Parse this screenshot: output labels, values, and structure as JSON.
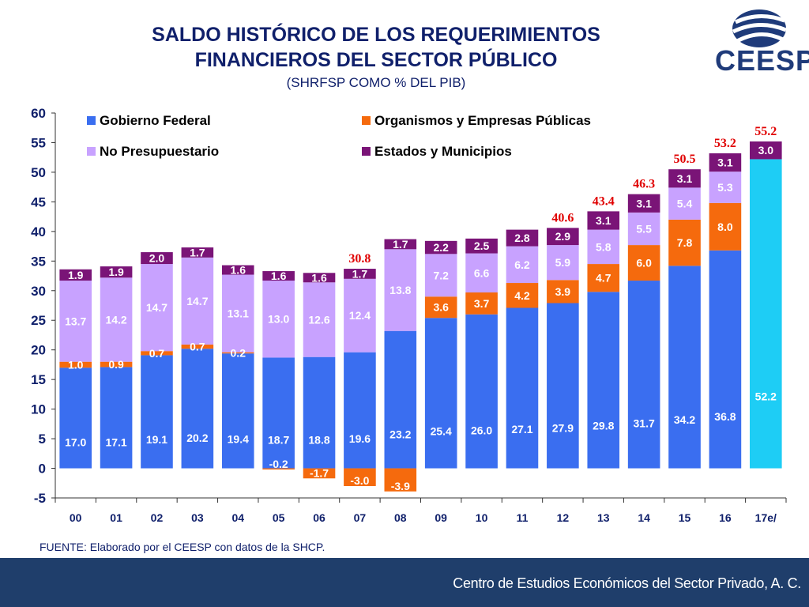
{
  "header": {
    "title_line1": "SALDO HISTÓRICO DE LOS REQUERIMIENTOS",
    "title_line2": "FINANCIEROS DEL SECTOR PÚBLICO",
    "subtitle": "(SHRFSP COMO % DEL PIB)",
    "logo_text": "CEESP"
  },
  "source": "FUENTE: Elaborado por el CEESP con datos de la SHCP.",
  "footer": "Centro de Estudios Económicos del Sector Privado, A. C.",
  "colors": {
    "gobierno": "#3a6ef0",
    "organismos": "#f56a0d",
    "no_presupuestario": "#c8a2ff",
    "estados": "#7a1477",
    "highlight_2017": "#1ecdf5",
    "total_labels": "#e00000",
    "axis_text": "#10206b"
  },
  "chart_data": {
    "type": "bar",
    "stacked": true,
    "categories": [
      "00",
      "01",
      "02",
      "03",
      "04",
      "05",
      "06",
      "07",
      "08",
      "09",
      "10",
      "11",
      "12",
      "13",
      "14",
      "15",
      "16",
      "17e/"
    ],
    "ylim": [
      -5,
      60
    ],
    "yticks": [
      -5,
      0,
      5,
      10,
      15,
      20,
      25,
      30,
      35,
      40,
      45,
      50,
      55,
      60
    ],
    "legend_position": "top",
    "grid": false,
    "series": [
      {
        "name": "Gobierno Federal",
        "values": [
          17.0,
          17.1,
          19.1,
          20.2,
          19.4,
          18.7,
          18.8,
          19.6,
          23.2,
          25.4,
          26.0,
          27.1,
          27.9,
          29.8,
          31.7,
          34.2,
          36.8,
          52.2
        ]
      },
      {
        "name": "Organismos y Empresas Públicas",
        "values": [
          1.0,
          0.9,
          0.7,
          0.7,
          0.2,
          -0.2,
          -1.7,
          -3.0,
          -3.9,
          3.6,
          3.7,
          4.2,
          3.9,
          4.7,
          6.0,
          7.8,
          8.0,
          null
        ]
      },
      {
        "name": "No Presupuestario",
        "values": [
          13.7,
          14.2,
          14.7,
          14.7,
          13.1,
          13.0,
          12.6,
          12.4,
          13.8,
          7.2,
          6.6,
          6.2,
          5.9,
          5.8,
          5.5,
          5.4,
          5.3,
          null
        ]
      },
      {
        "name": "Estados y Municipios",
        "values": [
          1.9,
          1.9,
          2.0,
          1.7,
          1.6,
          1.6,
          1.6,
          1.7,
          1.7,
          2.2,
          2.5,
          2.8,
          2.9,
          3.1,
          3.1,
          3.1,
          3.1,
          3.0
        ]
      }
    ],
    "value_labels": {
      "Gobierno Federal": [
        "17.0",
        "17.1",
        "19.1",
        "20.2",
        "19.4",
        "18.7",
        "18.8",
        "19.6",
        "23.2",
        "25.4",
        "26.0",
        "27.1",
        "27.9",
        "29.8",
        "31.7",
        "34.2",
        "36.8",
        "52.2"
      ],
      "Organismos y Empresas Públicas": [
        "1.0",
        "0.9",
        "0.7",
        "0.7",
        "0.2",
        "-0.2",
        "-1.7",
        "-3.0",
        "-3.9",
        "3.6",
        "3.7",
        "4.2",
        "3.9",
        "4.7",
        "6.0",
        "7.8",
        "8.0",
        ""
      ],
      "No Presupuestario": [
        "13.7",
        "14.2",
        "14.7",
        "14.7",
        "13.1",
        "13.0",
        "12.6",
        "12.4",
        "13.8",
        "7.2",
        "6.6",
        "6.2",
        "5.9",
        "5.8",
        "5.5",
        "5.4",
        "5.3",
        ""
      ],
      "Estados y Municipios": [
        "1.9",
        "1.9",
        "2.0",
        "1.7",
        "1.6",
        "1.6",
        "1.6",
        "1.7",
        "1.7",
        "2.2",
        "2.5",
        "2.8",
        "2.9",
        "3.1",
        "3.1",
        "3.1",
        "3.1",
        "3.0"
      ]
    },
    "totals": [
      {
        "category": "07",
        "value": 30.8,
        "label": "30.8"
      },
      {
        "category": "12",
        "value": 40.6,
        "label": "40.6"
      },
      {
        "category": "13",
        "value": 43.4,
        "label": "43.4"
      },
      {
        "category": "14",
        "value": 46.3,
        "label": "46.3"
      },
      {
        "category": "15",
        "value": 50.5,
        "label": "50.5"
      },
      {
        "category": "16",
        "value": 53.2,
        "label": "53.2"
      },
      {
        "category": "17e/",
        "value": 55.2,
        "label": "55.2"
      }
    ]
  }
}
